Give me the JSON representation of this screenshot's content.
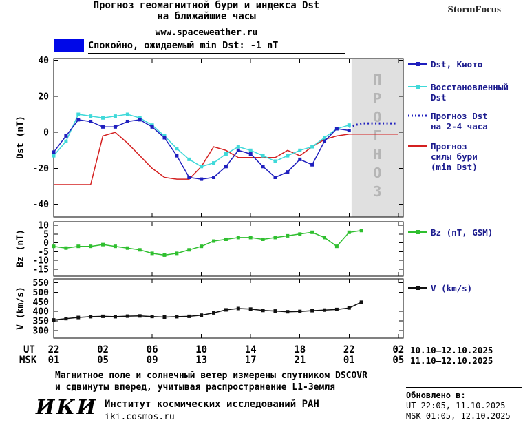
{
  "header": {
    "title_line1": "Прогноз геомагнитной бури и индекса Dst",
    "title_line2": "на ближайшие часы",
    "website": "www.spaceweather.ru",
    "brand": "StormFocus"
  },
  "status": {
    "text": "Спокойно, ожидаемый min Dst: -1 nT",
    "level_color": "#0008e8"
  },
  "colors": {
    "legend_text": "#1b1b8e",
    "forecast_region": "#e0e0e0",
    "forecast_region_label": "#b5b5b5"
  },
  "axis": {
    "ut_label": "UT",
    "msk_label": "MSK",
    "ut_date_range": "10.10–12.10.2025",
    "msk_date_range": "11.10–12.10.2025",
    "ut_ticks": [
      "22",
      "02",
      "06",
      "10",
      "14",
      "18",
      "22",
      "02"
    ],
    "msk_ticks": [
      "01",
      "05",
      "09",
      "13",
      "17",
      "21",
      "01",
      "05"
    ]
  },
  "legends": {
    "dst_kyoto": "Dst, Киото",
    "restored_dst": "Восстановленный\nDst",
    "forecast_dst": "Прогноз Dst\nна 2-4 часа",
    "forecast_storm": "Прогноз\nсилы бури\n(min Dst)",
    "bz": "Bz (nT, GSM)",
    "v": "V (km/s)"
  },
  "footer": {
    "note_line1": "Магнитное поле и солнечный ветер измерены спутником DSCOVR",
    "note_line2": "и сдвинуты вперед, учитывая распространение L1-Земля",
    "logo": "ИКИ",
    "institute": "Институт космических исследований РАН",
    "site": "iki.cosmos.ru",
    "updated_label": "Обновлено в:",
    "updated_ut": "UT  22:05, 11.10.2025",
    "updated_msk": "MSK 01:05, 12.10.2025"
  },
  "chart_data": [
    {
      "type": "line",
      "ylabel": "Dst (nT)",
      "xlim": [
        0,
        28.4
      ],
      "ylim": [
        -47,
        41
      ],
      "yticks": [
        -40,
        -20,
        0,
        20,
        40
      ],
      "xticks": [
        0,
        4,
        8,
        12,
        16,
        20,
        24,
        28
      ],
      "grid": false,
      "legend_position": "right",
      "forecast_region": {
        "from": 24.2,
        "to": 28.4,
        "color": "#e0e0e0",
        "label": "ПРОГНОЗ",
        "label_color": "#b5b5b5"
      },
      "series": [
        {
          "name": "Dst, Киото",
          "color": "#1f1fbe",
          "marker": true,
          "x_start": 0,
          "values": [
            -11,
            -2,
            7,
            6,
            3,
            3,
            6,
            7,
            3,
            -3,
            -13,
            -25,
            -26,
            -25,
            -19,
            -10,
            -12,
            -19,
            -25,
            -22,
            -15,
            -18,
            -5,
            2,
            1
          ]
        },
        {
          "name": "Восстановленный Dst",
          "color": "#3fd9d9",
          "marker": true,
          "x_start": 0,
          "values": [
            -13,
            -5,
            10,
            9,
            8,
            9,
            10,
            8,
            4,
            -2,
            -9,
            -15,
            -19,
            -17,
            -12,
            -8,
            -10,
            -13,
            -16,
            -13,
            -10,
            -8,
            -3,
            2,
            4
          ]
        },
        {
          "name": "Прогноз Dst на 2-4 часа",
          "color": "#1f1fbe",
          "dash": true,
          "width": 3,
          "x_start": 24,
          "values": [
            3,
            5,
            5,
            5,
            5
          ]
        },
        {
          "name": "Прогноз силы бури (min Dst)",
          "color": "#d42020",
          "x_start": 0,
          "values": [
            -29,
            -29,
            -29,
            -29,
            -2,
            0,
            -6,
            -13,
            -20,
            -25,
            -26,
            -26,
            -19,
            -8,
            -10,
            -14,
            -14,
            -14,
            -14,
            -10,
            -13,
            -8,
            -4,
            -2,
            -1,
            -1,
            -1,
            -1,
            -1
          ]
        }
      ]
    },
    {
      "type": "line",
      "ylabel": "Bz (nT)",
      "xlim": [
        0,
        28.4
      ],
      "ylim": [
        -19,
        12
      ],
      "yticks": [
        -15,
        -10,
        -5,
        0,
        5,
        10
      ],
      "xticks": [
        0,
        4,
        8,
        12,
        16,
        20,
        24,
        28
      ],
      "grid": false,
      "series": [
        {
          "name": "Bz (nT, GSM)",
          "color": "#2fbf2f",
          "marker": true,
          "x_start": 0,
          "values": [
            -2,
            -3,
            -2,
            -2,
            -1,
            -2,
            -3,
            -4,
            -6,
            -7,
            -6,
            -4,
            -2,
            1,
            2,
            3,
            3,
            2,
            3,
            4,
            5,
            6,
            3,
            -2,
            6,
            7
          ]
        }
      ]
    },
    {
      "type": "line",
      "ylabel": "V (km/s)",
      "xlim": [
        0,
        28.4
      ],
      "ylim": [
        260,
        570
      ],
      "yticks": [
        300,
        350,
        400,
        450,
        500,
        550
      ],
      "xticks": [
        0,
        4,
        8,
        12,
        16,
        20,
        24,
        28
      ],
      "grid": false,
      "series": [
        {
          "name": "V (km/s)",
          "color": "#111111",
          "marker": true,
          "x_start": 0,
          "values": [
            355,
            362,
            368,
            372,
            374,
            372,
            375,
            376,
            373,
            370,
            372,
            374,
            380,
            392,
            408,
            415,
            412,
            405,
            402,
            398,
            400,
            404,
            407,
            410,
            418,
            448
          ]
        }
      ]
    }
  ]
}
